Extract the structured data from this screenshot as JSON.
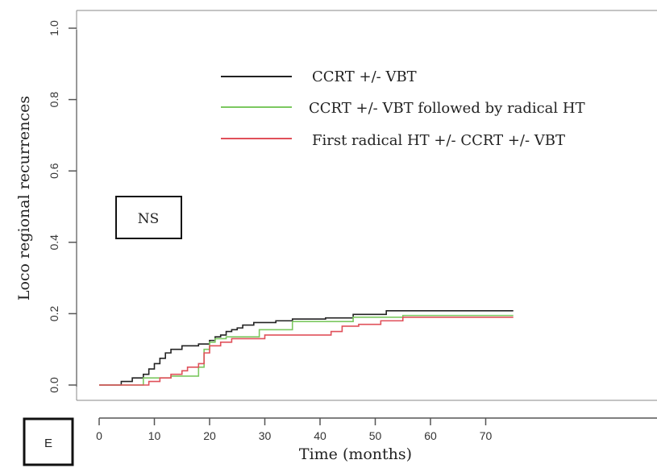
{
  "chart_data": {
    "type": "line",
    "step": true,
    "panel_label": "E",
    "annotation": "NS",
    "xlabel": "Time (months)",
    "ylabel": "Loco regional recurrences",
    "xlim": [
      -2,
      75
    ],
    "ylim": [
      -0.02,
      1.0
    ],
    "xticks": [
      0,
      10,
      20,
      30,
      40,
      50,
      60,
      70
    ],
    "yticks": [
      "0.0",
      "0.2",
      "0.4",
      "0.6",
      "0.8",
      "1.0"
    ],
    "ytick_values": [
      0.0,
      0.2,
      0.4,
      0.6,
      0.8,
      1.0
    ],
    "legend_position": "top-right",
    "series": [
      {
        "name": "CCRT +/- VBT",
        "color": "#222222",
        "x": [
          0,
          4,
          6,
          8,
          9,
          10,
          11,
          12,
          13,
          15,
          18,
          20,
          21,
          22,
          23,
          24,
          25,
          26,
          28,
          32,
          35,
          41,
          46,
          52,
          75
        ],
        "y": [
          0,
          0.01,
          0.02,
          0.03,
          0.045,
          0.06,
          0.075,
          0.09,
          0.1,
          0.11,
          0.115,
          0.125,
          0.135,
          0.14,
          0.15,
          0.155,
          0.16,
          0.168,
          0.175,
          0.18,
          0.185,
          0.188,
          0.198,
          0.208,
          0.208
        ]
      },
      {
        "name": "CCRT +/- VBT followed by radical HT",
        "color": "#7cc860",
        "x": [
          0,
          8,
          13,
          18,
          19,
          20,
          21,
          23,
          29,
          35,
          46,
          55,
          75
        ],
        "y": [
          0,
          0.02,
          0.025,
          0.05,
          0.1,
          0.12,
          0.13,
          0.135,
          0.155,
          0.178,
          0.19,
          0.195,
          0.195
        ]
      },
      {
        "name": "First radical HT +/- CCRT +/- VBT",
        "color": "#e0505a",
        "x": [
          0,
          9,
          11,
          13,
          15,
          16,
          18,
          19,
          20,
          22,
          24,
          30,
          42,
          44,
          47,
          51,
          55,
          75
        ],
        "y": [
          0,
          0.01,
          0.02,
          0.03,
          0.04,
          0.05,
          0.06,
          0.09,
          0.11,
          0.12,
          0.13,
          0.14,
          0.15,
          0.165,
          0.17,
          0.18,
          0.19,
          0.19
        ]
      }
    ]
  }
}
